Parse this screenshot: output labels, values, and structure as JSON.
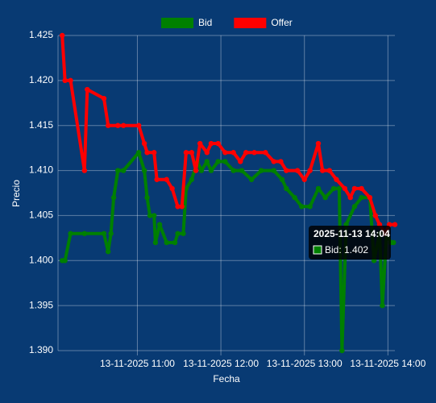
{
  "chart_data": {
    "type": "line",
    "xlabel": "Fecha",
    "ylabel": "Precio",
    "legend": "top",
    "grid": true,
    "xlim": [
      "2025-11-13 10:03",
      "2025-11-13 14:05"
    ],
    "xticks": [
      {
        "value": "2025-11-13 11:00",
        "label": "13-11-2025 11:00"
      },
      {
        "value": "2025-11-13 12:00",
        "label": "13-11-2025 12:00"
      },
      {
        "value": "2025-11-13 13:00",
        "label": "13-11-2025 13:00"
      },
      {
        "value": "2025-11-13 14:00",
        "label": "13-11-2025 14:00"
      }
    ],
    "ylim": [
      1.39,
      1.425
    ],
    "yticks": [
      {
        "value": 1.39,
        "label": "1.390"
      },
      1.395,
      {
        "value": 1.4,
        "label": "1.400"
      },
      1.405,
      {
        "value": 1.41,
        "label": "1.410"
      },
      1.415,
      {
        "value": 1.42,
        "label": "1.420"
      },
      1.425
    ],
    "series": [
      {
        "name": "Bid",
        "color": "#008000",
        "x": [
          "2025-11-13 10:06",
          "2025-11-13 10:08",
          "2025-11-13 10:12",
          "2025-11-13 10:22",
          "2025-11-13 10:36",
          "2025-11-13 10:39",
          "2025-11-13 10:41",
          "2025-11-13 10:43",
          "2025-11-13 10:46",
          "2025-11-13 10:50",
          "2025-11-13 11:01",
          "2025-11-13 11:05",
          "2025-11-13 11:07",
          "2025-11-13 11:09",
          "2025-11-13 11:12",
          "2025-11-13 11:13",
          "2025-11-13 11:16",
          "2025-11-13 11:21",
          "2025-11-13 11:27",
          "2025-11-13 11:29",
          "2025-11-13 11:33",
          "2025-11-13 11:35",
          "2025-11-13 11:39",
          "2025-11-13 11:43",
          "2025-11-13 11:46",
          "2025-11-13 11:50",
          "2025-11-13 11:53",
          "2025-11-13 11:58",
          "2025-11-13 12:03",
          "2025-11-13 12:09",
          "2025-11-13 12:15",
          "2025-11-13 12:22",
          "2025-11-13 12:29",
          "2025-11-13 12:38",
          "2025-11-13 12:44",
          "2025-11-13 12:47",
          "2025-11-13 12:53",
          "2025-11-13 12:58",
          "2025-11-13 13:04",
          "2025-11-13 13:10",
          "2025-11-13 13:15",
          "2025-11-13 13:21",
          "2025-11-13 13:25",
          "2025-11-13 13:27",
          "2025-11-13 13:30",
          "2025-11-13 13:36",
          "2025-11-13 13:41",
          "2025-11-13 13:47",
          "2025-11-13 13:50",
          "2025-11-13 13:54",
          "2025-11-13 13:56",
          "2025-11-13 13:59",
          "2025-11-13 14:02",
          "2025-11-13 14:04"
        ],
        "values": [
          1.4,
          1.4,
          1.403,
          1.403,
          1.403,
          1.401,
          1.403,
          1.407,
          1.41,
          1.41,
          1.412,
          1.41,
          1.407,
          1.405,
          1.405,
          1.402,
          1.404,
          1.402,
          1.402,
          1.403,
          1.403,
          1.408,
          1.409,
          1.411,
          1.41,
          1.411,
          1.41,
          1.411,
          1.411,
          1.41,
          1.41,
          1.409,
          1.41,
          1.41,
          1.409,
          1.408,
          1.407,
          1.406,
          1.406,
          1.408,
          1.407,
          1.408,
          1.408,
          1.39,
          1.404,
          1.406,
          1.407,
          1.407,
          1.4,
          1.403,
          1.395,
          1.403,
          1.402,
          1.402
        ]
      },
      {
        "name": "Offer",
        "color": "#ff0000",
        "x": [
          "2025-11-13 10:06",
          "2025-11-13 10:08",
          "2025-11-13 10:12",
          "2025-11-13 10:22",
          "2025-11-13 10:24",
          "2025-11-13 10:36",
          "2025-11-13 10:39",
          "2025-11-13 10:46",
          "2025-11-13 10:50",
          "2025-11-13 11:01",
          "2025-11-13 11:05",
          "2025-11-13 11:07",
          "2025-11-13 11:12",
          "2025-11-13 11:14",
          "2025-11-13 11:21",
          "2025-11-13 11:25",
          "2025-11-13 11:29",
          "2025-11-13 11:32",
          "2025-11-13 11:35",
          "2025-11-13 11:39",
          "2025-11-13 11:42",
          "2025-11-13 11:45",
          "2025-11-13 11:50",
          "2025-11-13 11:53",
          "2025-11-13 11:58",
          "2025-11-13 12:03",
          "2025-11-13 12:09",
          "2025-11-13 12:14",
          "2025-11-13 12:18",
          "2025-11-13 12:24",
          "2025-11-13 12:32",
          "2025-11-13 12:38",
          "2025-11-13 12:43",
          "2025-11-13 12:47",
          "2025-11-13 12:55",
          "2025-11-13 13:00",
          "2025-11-13 13:04",
          "2025-11-13 13:10",
          "2025-11-13 13:13",
          "2025-11-13 13:18",
          "2025-11-13 13:23",
          "2025-11-13 13:29",
          "2025-11-13 13:33",
          "2025-11-13 13:36",
          "2025-11-13 13:41",
          "2025-11-13 13:47",
          "2025-11-13 13:51",
          "2025-11-13 13:54",
          "2025-11-13 13:58",
          "2025-11-13 14:01",
          "2025-11-13 14:05"
        ],
        "values": [
          1.425,
          1.42,
          1.42,
          1.41,
          1.419,
          1.418,
          1.415,
          1.415,
          1.415,
          1.415,
          1.413,
          1.412,
          1.412,
          1.409,
          1.409,
          1.408,
          1.406,
          1.406,
          1.412,
          1.412,
          1.41,
          1.413,
          1.412,
          1.413,
          1.413,
          1.412,
          1.412,
          1.411,
          1.412,
          1.412,
          1.412,
          1.411,
          1.411,
          1.41,
          1.41,
          1.409,
          1.41,
          1.413,
          1.41,
          1.41,
          1.409,
          1.408,
          1.407,
          1.408,
          1.408,
          1.407,
          1.405,
          1.404,
          1.403,
          1.404,
          1.404
        ]
      }
    ],
    "tooltip": {
      "title": "2025-11-13 14:04",
      "label": "Bid: 1.402",
      "color": "#008000"
    }
  }
}
